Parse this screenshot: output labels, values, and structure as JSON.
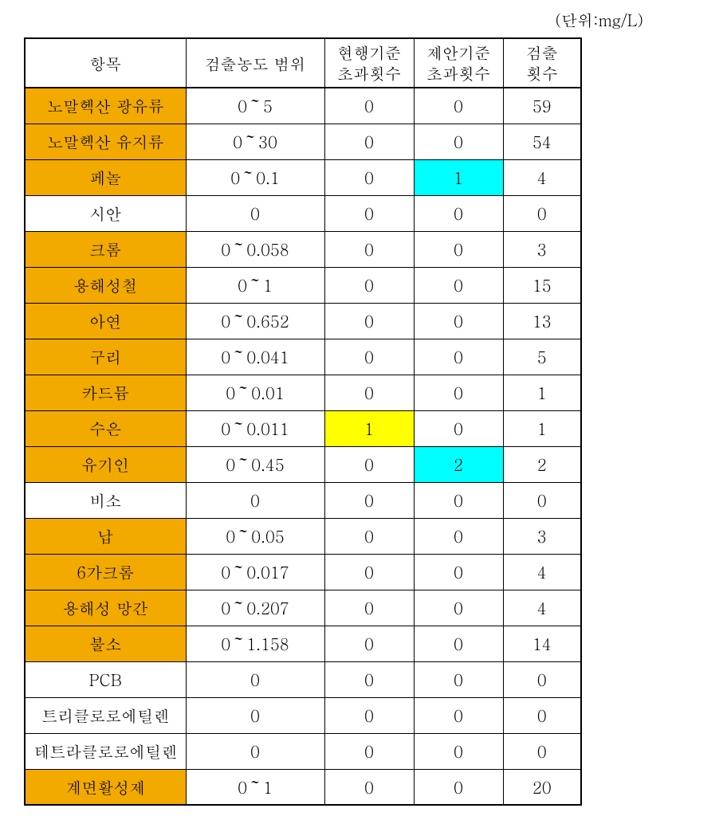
{
  "unit_label": "(단위:mg/L)",
  "headers": {
    "item": "항목",
    "range": "검출농도 범위",
    "current_line1": "현행기준",
    "current_line2": "초과횟수",
    "proposed_line1": "제안기준",
    "proposed_line2": "초과횟수",
    "detected_line1": "검출",
    "detected_line2": "횟수"
  },
  "colors": {
    "item_highlight": "#f2a900",
    "yellow_cell": "#ffff00",
    "cyan_cell": "#00ffff",
    "white": "#ffffff"
  },
  "rows": [
    {
      "item": "노말헥산 광유류",
      "item_bg": "#f2a900",
      "range": "0～5",
      "current": "0",
      "current_bg": "#ffffff",
      "proposed": "0",
      "proposed_bg": "#ffffff",
      "detected": "59"
    },
    {
      "item": "노말헥산 유지류",
      "item_bg": "#f2a900",
      "range": "0～30",
      "current": "0",
      "current_bg": "#ffffff",
      "proposed": "0",
      "proposed_bg": "#ffffff",
      "detected": "54"
    },
    {
      "item": "페놀",
      "item_bg": "#f2a900",
      "range": "0～0.1",
      "current": "0",
      "current_bg": "#ffffff",
      "proposed": "1",
      "proposed_bg": "#00ffff",
      "detected": "4"
    },
    {
      "item": "시안",
      "item_bg": "#ffffff",
      "range": "0",
      "current": "0",
      "current_bg": "#ffffff",
      "proposed": "0",
      "proposed_bg": "#ffffff",
      "detected": "0"
    },
    {
      "item": "크롬",
      "item_bg": "#f2a900",
      "range": "0～0.058",
      "current": "0",
      "current_bg": "#ffffff",
      "proposed": "0",
      "proposed_bg": "#ffffff",
      "detected": "3"
    },
    {
      "item": "용해성철",
      "item_bg": "#f2a900",
      "range": "0～1",
      "current": "0",
      "current_bg": "#ffffff",
      "proposed": "0",
      "proposed_bg": "#ffffff",
      "detected": "15"
    },
    {
      "item": "아연",
      "item_bg": "#f2a900",
      "range": "0～0.652",
      "current": "0",
      "current_bg": "#ffffff",
      "proposed": "0",
      "proposed_bg": "#ffffff",
      "detected": "13"
    },
    {
      "item": "구리",
      "item_bg": "#f2a900",
      "range": "0～0.041",
      "current": "0",
      "current_bg": "#ffffff",
      "proposed": "0",
      "proposed_bg": "#ffffff",
      "detected": "5"
    },
    {
      "item": "카드뮴",
      "item_bg": "#f2a900",
      "range": "0～0.01",
      "current": "0",
      "current_bg": "#ffffff",
      "proposed": "0",
      "proposed_bg": "#ffffff",
      "detected": "1"
    },
    {
      "item": "수은",
      "item_bg": "#f2a900",
      "range": "0～0.011",
      "current": "1",
      "current_bg": "#ffff00",
      "proposed": "0",
      "proposed_bg": "#ffffff",
      "detected": "1"
    },
    {
      "item": "유기인",
      "item_bg": "#f2a900",
      "range": "0～0.45",
      "current": "0",
      "current_bg": "#ffffff",
      "proposed": "2",
      "proposed_bg": "#00ffff",
      "detected": "2"
    },
    {
      "item": "비소",
      "item_bg": "#ffffff",
      "range": "0",
      "current": "0",
      "current_bg": "#ffffff",
      "proposed": "0",
      "proposed_bg": "#ffffff",
      "detected": "0"
    },
    {
      "item": "납",
      "item_bg": "#f2a900",
      "range": "0～0.05",
      "current": "0",
      "current_bg": "#ffffff",
      "proposed": "0",
      "proposed_bg": "#ffffff",
      "detected": "3"
    },
    {
      "item": "6가크롬",
      "item_bg": "#f2a900",
      "range": "0～0.017",
      "current": "0",
      "current_bg": "#ffffff",
      "proposed": "0",
      "proposed_bg": "#ffffff",
      "detected": "4"
    },
    {
      "item": "용해성 망간",
      "item_bg": "#f2a900",
      "range": "0～0.207",
      "current": "0",
      "current_bg": "#ffffff",
      "proposed": "0",
      "proposed_bg": "#ffffff",
      "detected": "4"
    },
    {
      "item": "불소",
      "item_bg": "#f2a900",
      "range": "0～1.158",
      "current": "0",
      "current_bg": "#ffffff",
      "proposed": "0",
      "proposed_bg": "#ffffff",
      "detected": "14"
    },
    {
      "item": "PCB",
      "item_bg": "#ffffff",
      "range": "0",
      "current": "0",
      "current_bg": "#ffffff",
      "proposed": "0",
      "proposed_bg": "#ffffff",
      "detected": "0"
    },
    {
      "item": "트리클로로에틸렌",
      "item_bg": "#ffffff",
      "range": "0",
      "current": "0",
      "current_bg": "#ffffff",
      "proposed": "0",
      "proposed_bg": "#ffffff",
      "detected": "0"
    },
    {
      "item": "테트라클로로에틸렌",
      "item_bg": "#ffffff",
      "range": "0",
      "current": "0",
      "current_bg": "#ffffff",
      "proposed": "0",
      "proposed_bg": "#ffffff",
      "detected": "0"
    },
    {
      "item": "계면활성제",
      "item_bg": "#f2a900",
      "range": "0～1",
      "current": "0",
      "current_bg": "#ffffff",
      "proposed": "0",
      "proposed_bg": "#ffffff",
      "detected": "20"
    }
  ]
}
